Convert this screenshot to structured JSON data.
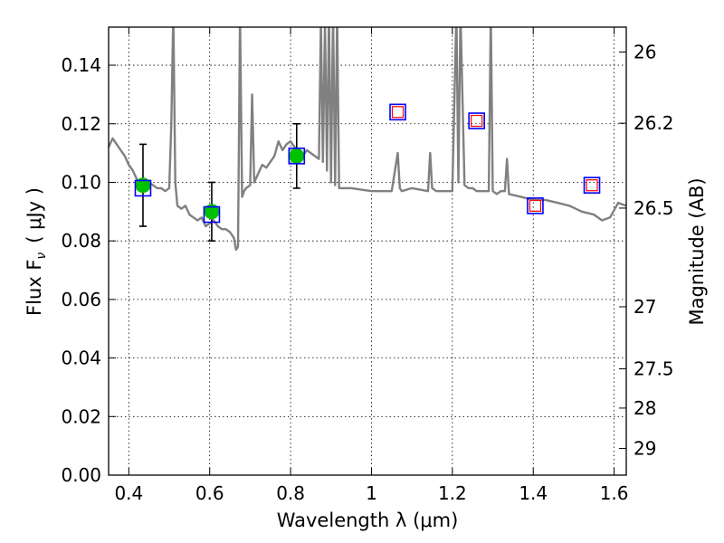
{
  "chart_data": {
    "type": "scatter",
    "xlabel": "Wavelength  λ (μm)",
    "ylabel": "Flux  F",
    "ylabel_sub": "ν",
    "ylabel_unit": "( μJy )",
    "ylabel_right": "Magnitude (AB)",
    "xlim": [
      0.35,
      1.63
    ],
    "ylim": [
      0.0,
      0.153
    ],
    "grid": true,
    "x_ticks": [
      0.4,
      0.6,
      0.8,
      1.0,
      1.2,
      1.4,
      1.6
    ],
    "x_tick_labels": [
      "0.4",
      "0.6",
      "0.8",
      "1",
      "1.2",
      "1.4",
      "1.6"
    ],
    "y_ticks": [
      0.0,
      0.02,
      0.04,
      0.06,
      0.08,
      0.1,
      0.12,
      0.14
    ],
    "y_tick_labels": [
      "0.00",
      "0.02",
      "0.04",
      "0.06",
      "0.08",
      "0.10",
      "0.12",
      "0.14"
    ],
    "right_ticks": [
      {
        "label": "26",
        "flux": 0.1445
      },
      {
        "label": "26.2",
        "flux": 0.1202
      },
      {
        "label": "26.5",
        "flux": 0.0912
      },
      {
        "label": "27",
        "flux": 0.0575
      },
      {
        "label": "27.5",
        "flux": 0.0363
      },
      {
        "label": "28",
        "flux": 0.0229
      },
      {
        "label": "29",
        "flux": 0.0091
      }
    ],
    "series": [
      {
        "kind": "line",
        "color": "#808080",
        "x": [
          0.35,
          0.36,
          0.37,
          0.38,
          0.39,
          0.4,
          0.41,
          0.42,
          0.43,
          0.44,
          0.45,
          0.46,
          0.47,
          0.48,
          0.49,
          0.5,
          0.505,
          0.51,
          0.515,
          0.52,
          0.53,
          0.54,
          0.55,
          0.56,
          0.57,
          0.58,
          0.59,
          0.6,
          0.61,
          0.62,
          0.63,
          0.64,
          0.65,
          0.66,
          0.665,
          0.67,
          0.675,
          0.68,
          0.685,
          0.69,
          0.7,
          0.705,
          0.71,
          0.72,
          0.73,
          0.74,
          0.75,
          0.76,
          0.77,
          0.78,
          0.79,
          0.8,
          0.81,
          0.82,
          0.83,
          0.84,
          0.85,
          0.86,
          0.87,
          0.875,
          0.88,
          0.885,
          0.89,
          0.895,
          0.9,
          0.905,
          0.91,
          0.915,
          0.92,
          0.95,
          1.0,
          1.05,
          1.065,
          1.07,
          1.075,
          1.1,
          1.14,
          1.145,
          1.15,
          1.16,
          1.2,
          1.21,
          1.215,
          1.22,
          1.23,
          1.24,
          1.25,
          1.26,
          1.27,
          1.28,
          1.29,
          1.295,
          1.3,
          1.31,
          1.32,
          1.33,
          1.335,
          1.34,
          1.37,
          1.4,
          1.43,
          1.46,
          1.49,
          1.52,
          1.55,
          1.57,
          1.59,
          1.61,
          1.63
        ],
        "y": [
          0.112,
          0.115,
          0.113,
          0.111,
          0.109,
          0.106,
          0.104,
          0.101,
          0.099,
          0.101,
          0.1,
          0.099,
          0.098,
          0.098,
          0.097,
          0.098,
          0.12,
          0.158,
          0.1,
          0.092,
          0.091,
          0.092,
          0.089,
          0.088,
          0.087,
          0.088,
          0.085,
          0.086,
          0.087,
          0.085,
          0.084,
          0.084,
          0.083,
          0.081,
          0.077,
          0.078,
          0.158,
          0.095,
          0.097,
          0.098,
          0.099,
          0.13,
          0.1,
          0.103,
          0.106,
          0.105,
          0.107,
          0.109,
          0.114,
          0.111,
          0.113,
          0.114,
          0.112,
          0.11,
          0.109,
          0.111,
          0.11,
          0.109,
          0.108,
          0.155,
          0.107,
          0.155,
          0.104,
          0.158,
          0.1,
          0.158,
          0.099,
          0.158,
          0.098,
          0.098,
          0.097,
          0.097,
          0.11,
          0.098,
          0.097,
          0.098,
          0.097,
          0.11,
          0.098,
          0.097,
          0.097,
          0.158,
          0.1,
          0.158,
          0.099,
          0.098,
          0.098,
          0.097,
          0.097,
          0.097,
          0.097,
          0.158,
          0.097,
          0.096,
          0.097,
          0.097,
          0.108,
          0.096,
          0.095,
          0.094,
          0.094,
          0.093,
          0.092,
          0.09,
          0.089,
          0.087,
          0.088,
          0.093,
          0.092
        ]
      },
      {
        "kind": "errorbar",
        "color": "#000000",
        "points": [
          {
            "x": 0.435,
            "y": 0.099,
            "ylo": 0.085,
            "yhi": 0.113
          },
          {
            "x": 0.605,
            "y": 0.09,
            "ylo": 0.08,
            "yhi": 0.1
          },
          {
            "x": 0.815,
            "y": 0.109,
            "ylo": 0.098,
            "yhi": 0.12
          }
        ]
      },
      {
        "kind": "marker",
        "marker": "circle",
        "color": "#00c000",
        "x": [
          0.435,
          0.605,
          0.815
        ],
        "y": [
          0.099,
          0.09,
          0.109
        ]
      },
      {
        "kind": "marker",
        "marker": "square",
        "color": "#0000ff",
        "x": [
          0.435,
          0.605,
          0.815,
          1.065,
          1.26,
          1.405,
          1.545
        ],
        "y": [
          0.098,
          0.089,
          0.109,
          0.124,
          0.121,
          0.092,
          0.099
        ]
      },
      {
        "kind": "marker",
        "marker": "square-small",
        "color": "#ff0000",
        "x": [
          1.065,
          1.26,
          1.405,
          1.545
        ],
        "y": [
          0.124,
          0.121,
          0.092,
          0.099
        ]
      }
    ]
  }
}
